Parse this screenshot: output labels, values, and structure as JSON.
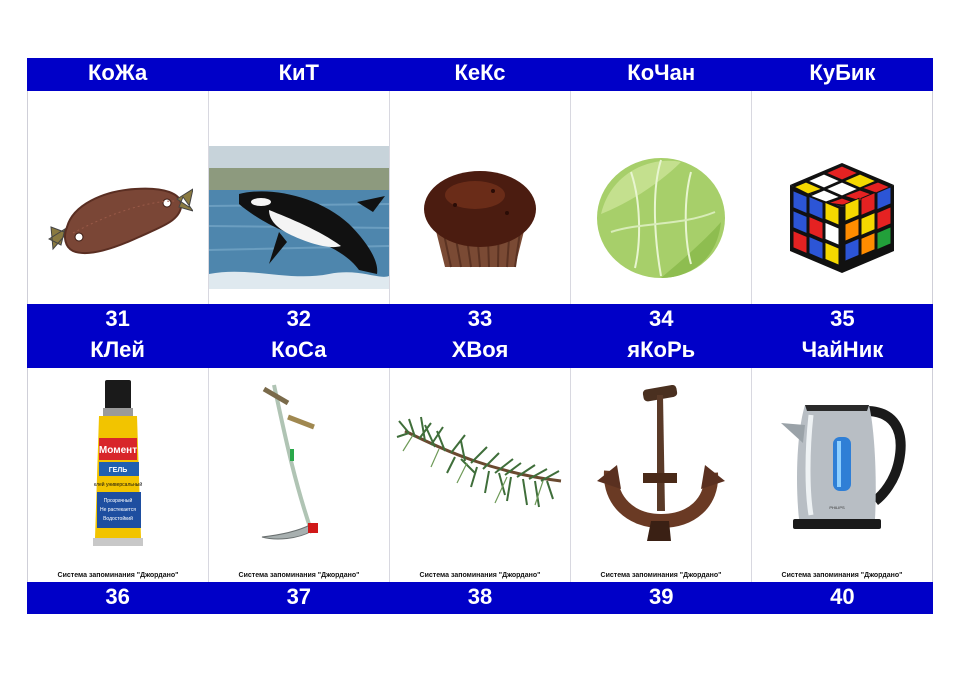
{
  "caption": "Система запоминания \"Джордано\"",
  "colors": {
    "band": "#0000c8",
    "band_text": "#ffffff"
  },
  "rows": [
    {
      "cards": [
        {
          "word": "КоЖа",
          "number": "31",
          "image": "leather-patch"
        },
        {
          "word": "КиТ",
          "number": "32",
          "image": "orca-whale"
        },
        {
          "word": "КеКс",
          "number": "33",
          "image": "cupcake"
        },
        {
          "word": "КоЧан",
          "number": "34",
          "image": "cabbage"
        },
        {
          "word": "КуБик",
          "number": "35",
          "image": "rubiks-cube"
        }
      ]
    },
    {
      "cards": [
        {
          "word": "КЛей",
          "number": "36",
          "image": "glue-tube",
          "tube_text": [
            "Момент",
            "ГЕЛЬ",
            "клей универсальный",
            "Прозрачный",
            "Не растекается",
            "Водостойкий"
          ]
        },
        {
          "word": "КоСа",
          "number": "37",
          "image": "scythe"
        },
        {
          "word": "ХВоя",
          "number": "38",
          "image": "pine-branch"
        },
        {
          "word": "яКоРь",
          "number": "39",
          "image": "anchor"
        },
        {
          "word": "ЧайНик",
          "number": "40",
          "image": "kettle",
          "kettle_brand": "PHILIPS"
        }
      ]
    }
  ]
}
